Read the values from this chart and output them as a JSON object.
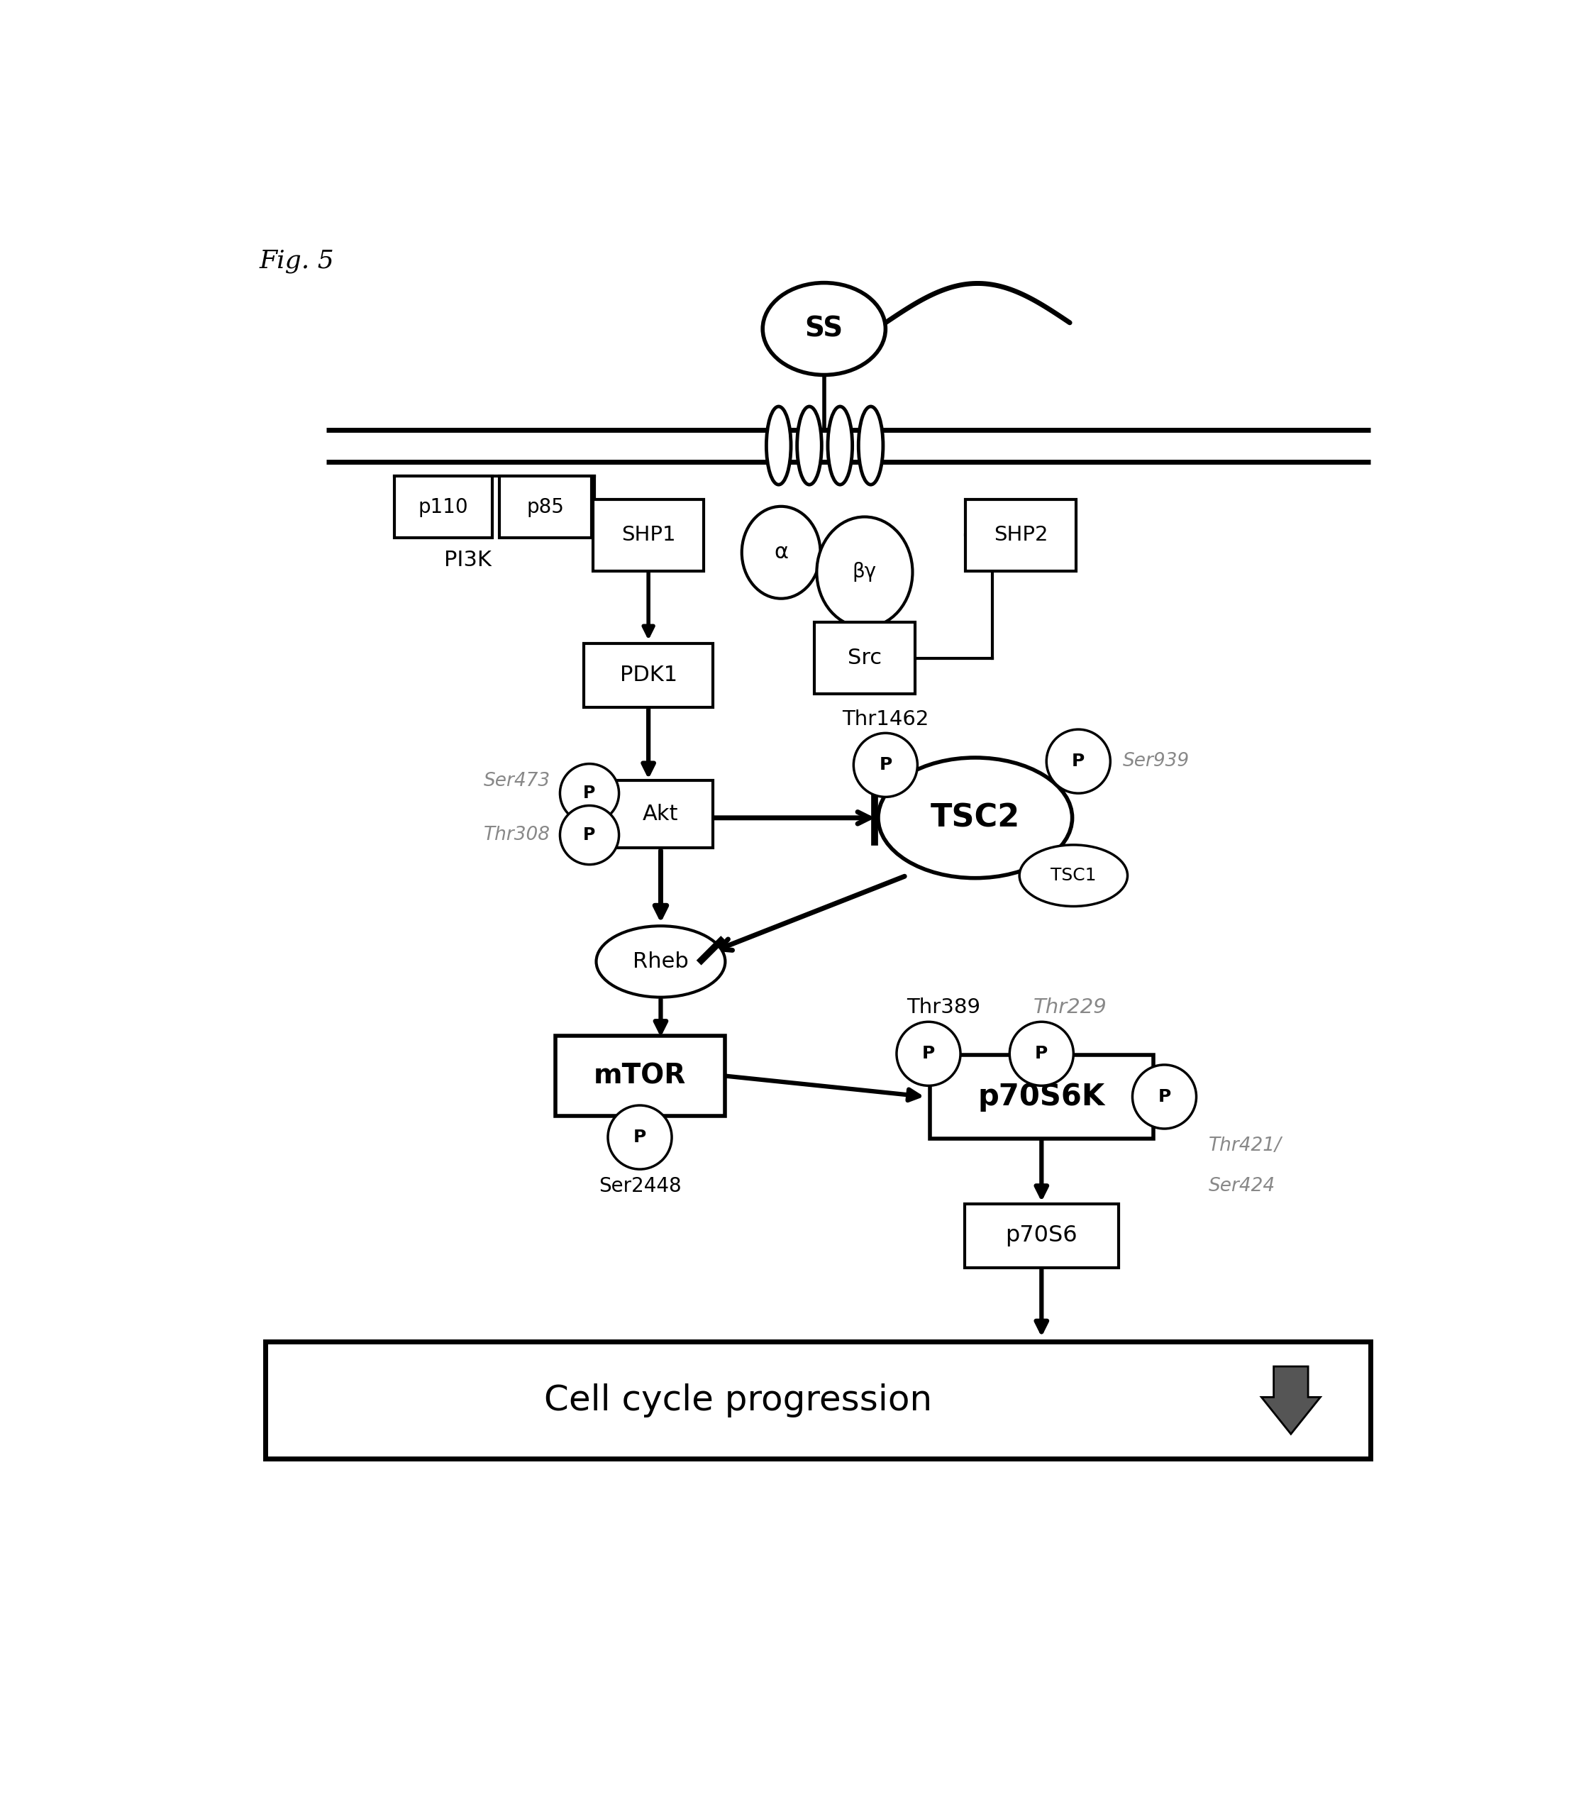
{
  "fig_label": "Fig. 5",
  "background": "#ffffff",
  "figsize": [
    22.5,
    25.64
  ],
  "xlim": [
    0,
    10
  ],
  "ylim": [
    0,
    11.4
  ]
}
